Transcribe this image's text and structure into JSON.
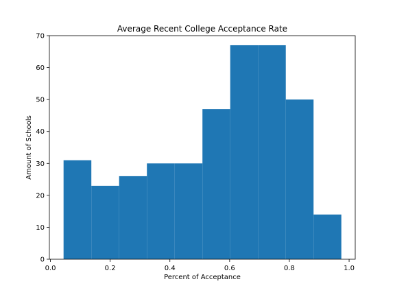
{
  "chart_data": {
    "type": "bar",
    "subtype": "histogram",
    "title": "Average Recent College Acceptance Rate",
    "xlabel": "Percent of Acceptance",
    "ylabel": "Amount of Schools",
    "xlim": [
      -0.0035,
      1.0205
    ],
    "ylim": [
      0,
      70
    ],
    "x_ticks": [
      0.0,
      0.2,
      0.4,
      0.6,
      0.8,
      1.0
    ],
    "x_tick_labels": [
      "0.0",
      "0.2",
      "0.4",
      "0.6",
      "0.8",
      "1.0"
    ],
    "y_ticks": [
      0,
      10,
      20,
      30,
      40,
      50,
      60,
      70
    ],
    "y_tick_labels": [
      "0",
      "10",
      "20",
      "30",
      "40",
      "50",
      "60",
      "70"
    ],
    "bins": [
      {
        "x0": 0.044,
        "x1": 0.137,
        "count": 31
      },
      {
        "x0": 0.137,
        "x1": 0.23,
        "count": 23
      },
      {
        "x0": 0.23,
        "x1": 0.323,
        "count": 26
      },
      {
        "x0": 0.323,
        "x1": 0.416,
        "count": 30
      },
      {
        "x0": 0.416,
        "x1": 0.509,
        "count": 30
      },
      {
        "x0": 0.509,
        "x1": 0.602,
        "count": 47
      },
      {
        "x0": 0.602,
        "x1": 0.695,
        "count": 67
      },
      {
        "x0": 0.695,
        "x1": 0.788,
        "count": 67
      },
      {
        "x0": 0.788,
        "x1": 0.881,
        "count": 50
      },
      {
        "x0": 0.881,
        "x1": 0.974,
        "count": 14
      }
    ],
    "grid": false,
    "legend": "none",
    "colors": {
      "bar": "#1f77b4",
      "axis": "#000000",
      "background": "#ffffff"
    }
  }
}
